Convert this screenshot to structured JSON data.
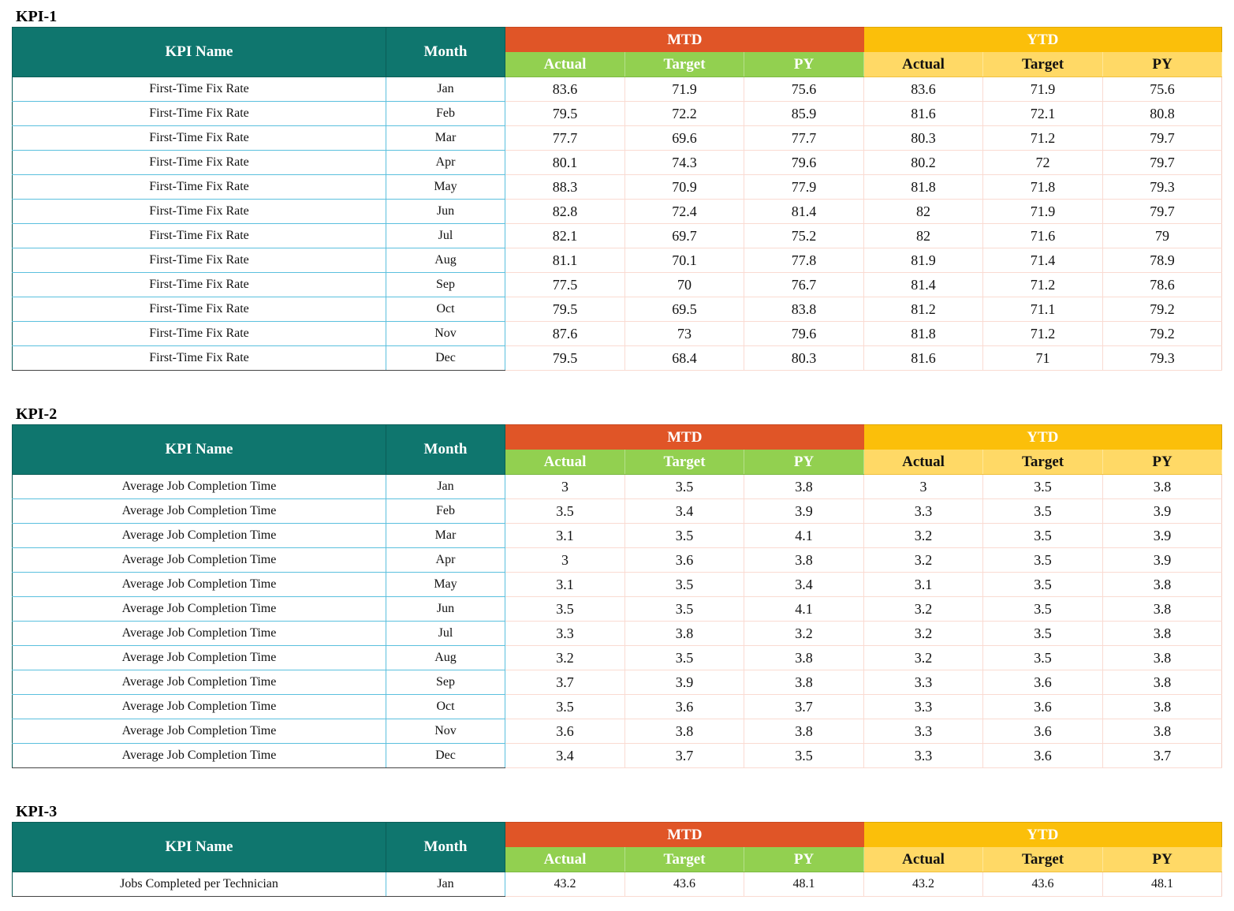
{
  "headers": {
    "kpi_name": "KPI Name",
    "month": "Month",
    "mtd": "MTD",
    "ytd": "YTD",
    "actual": "Actual",
    "target": "Target",
    "py": "PY"
  },
  "colors": {
    "name_header": "#0f766e",
    "mtd_header": "#e05527",
    "mtd_sub": "#92d050",
    "ytd_header": "#fbbf0a",
    "ytd_sub": "#ffd966"
  },
  "kpis": [
    {
      "title": "KPI-1",
      "rows": [
        {
          "name": "First-Time Fix Rate",
          "month": "Jan",
          "mtd_actual": "83.6",
          "mtd_target": "71.9",
          "mtd_py": "75.6",
          "ytd_actual": "83.6",
          "ytd_target": "71.9",
          "ytd_py": "75.6"
        },
        {
          "name": "First-Time Fix Rate",
          "month": "Feb",
          "mtd_actual": "79.5",
          "mtd_target": "72.2",
          "mtd_py": "85.9",
          "ytd_actual": "81.6",
          "ytd_target": "72.1",
          "ytd_py": "80.8"
        },
        {
          "name": "First-Time Fix Rate",
          "month": "Mar",
          "mtd_actual": "77.7",
          "mtd_target": "69.6",
          "mtd_py": "77.7",
          "ytd_actual": "80.3",
          "ytd_target": "71.2",
          "ytd_py": "79.7"
        },
        {
          "name": "First-Time Fix Rate",
          "month": "Apr",
          "mtd_actual": "80.1",
          "mtd_target": "74.3",
          "mtd_py": "79.6",
          "ytd_actual": "80.2",
          "ytd_target": "72",
          "ytd_py": "79.7"
        },
        {
          "name": "First-Time Fix Rate",
          "month": "May",
          "mtd_actual": "88.3",
          "mtd_target": "70.9",
          "mtd_py": "77.9",
          "ytd_actual": "81.8",
          "ytd_target": "71.8",
          "ytd_py": "79.3"
        },
        {
          "name": "First-Time Fix Rate",
          "month": "Jun",
          "mtd_actual": "82.8",
          "mtd_target": "72.4",
          "mtd_py": "81.4",
          "ytd_actual": "82",
          "ytd_target": "71.9",
          "ytd_py": "79.7"
        },
        {
          "name": "First-Time Fix Rate",
          "month": "Jul",
          "mtd_actual": "82.1",
          "mtd_target": "69.7",
          "mtd_py": "75.2",
          "ytd_actual": "82",
          "ytd_target": "71.6",
          "ytd_py": "79"
        },
        {
          "name": "First-Time Fix Rate",
          "month": "Aug",
          "mtd_actual": "81.1",
          "mtd_target": "70.1",
          "mtd_py": "77.8",
          "ytd_actual": "81.9",
          "ytd_target": "71.4",
          "ytd_py": "78.9"
        },
        {
          "name": "First-Time Fix Rate",
          "month": "Sep",
          "mtd_actual": "77.5",
          "mtd_target": "70",
          "mtd_py": "76.7",
          "ytd_actual": "81.4",
          "ytd_target": "71.2",
          "ytd_py": "78.6"
        },
        {
          "name": "First-Time Fix Rate",
          "month": "Oct",
          "mtd_actual": "79.5",
          "mtd_target": "69.5",
          "mtd_py": "83.8",
          "ytd_actual": "81.2",
          "ytd_target": "71.1",
          "ytd_py": "79.2"
        },
        {
          "name": "First-Time Fix Rate",
          "month": "Nov",
          "mtd_actual": "87.6",
          "mtd_target": "73",
          "mtd_py": "79.6",
          "ytd_actual": "81.8",
          "ytd_target": "71.2",
          "ytd_py": "79.2"
        },
        {
          "name": "First-Time Fix Rate",
          "month": "Dec",
          "mtd_actual": "79.5",
          "mtd_target": "68.4",
          "mtd_py": "80.3",
          "ytd_actual": "81.6",
          "ytd_target": "71",
          "ytd_py": "79.3"
        }
      ]
    },
    {
      "title": "KPI-2",
      "rows": [
        {
          "name": "Average Job Completion Time",
          "month": "Jan",
          "mtd_actual": "3",
          "mtd_target": "3.5",
          "mtd_py": "3.8",
          "ytd_actual": "3",
          "ytd_target": "3.5",
          "ytd_py": "3.8"
        },
        {
          "name": "Average Job Completion Time",
          "month": "Feb",
          "mtd_actual": "3.5",
          "mtd_target": "3.4",
          "mtd_py": "3.9",
          "ytd_actual": "3.3",
          "ytd_target": "3.5",
          "ytd_py": "3.9"
        },
        {
          "name": "Average Job Completion Time",
          "month": "Mar",
          "mtd_actual": "3.1",
          "mtd_target": "3.5",
          "mtd_py": "4.1",
          "ytd_actual": "3.2",
          "ytd_target": "3.5",
          "ytd_py": "3.9"
        },
        {
          "name": "Average Job Completion Time",
          "month": "Apr",
          "mtd_actual": "3",
          "mtd_target": "3.6",
          "mtd_py": "3.8",
          "ytd_actual": "3.2",
          "ytd_target": "3.5",
          "ytd_py": "3.9"
        },
        {
          "name": "Average Job Completion Time",
          "month": "May",
          "mtd_actual": "3.1",
          "mtd_target": "3.5",
          "mtd_py": "3.4",
          "ytd_actual": "3.1",
          "ytd_target": "3.5",
          "ytd_py": "3.8"
        },
        {
          "name": "Average Job Completion Time",
          "month": "Jun",
          "mtd_actual": "3.5",
          "mtd_target": "3.5",
          "mtd_py": "4.1",
          "ytd_actual": "3.2",
          "ytd_target": "3.5",
          "ytd_py": "3.8"
        },
        {
          "name": "Average Job Completion Time",
          "month": "Jul",
          "mtd_actual": "3.3",
          "mtd_target": "3.8",
          "mtd_py": "3.2",
          "ytd_actual": "3.2",
          "ytd_target": "3.5",
          "ytd_py": "3.8"
        },
        {
          "name": "Average Job Completion Time",
          "month": "Aug",
          "mtd_actual": "3.2",
          "mtd_target": "3.5",
          "mtd_py": "3.8",
          "ytd_actual": "3.2",
          "ytd_target": "3.5",
          "ytd_py": "3.8"
        },
        {
          "name": "Average Job Completion Time",
          "month": "Sep",
          "mtd_actual": "3.7",
          "mtd_target": "3.9",
          "mtd_py": "3.8",
          "ytd_actual": "3.3",
          "ytd_target": "3.6",
          "ytd_py": "3.8"
        },
        {
          "name": "Average Job Completion Time",
          "month": "Oct",
          "mtd_actual": "3.5",
          "mtd_target": "3.6",
          "mtd_py": "3.7",
          "ytd_actual": "3.3",
          "ytd_target": "3.6",
          "ytd_py": "3.8"
        },
        {
          "name": "Average Job Completion Time",
          "month": "Nov",
          "mtd_actual": "3.6",
          "mtd_target": "3.8",
          "mtd_py": "3.8",
          "ytd_actual": "3.3",
          "ytd_target": "3.6",
          "ytd_py": "3.8"
        },
        {
          "name": "Average Job Completion Time",
          "month": "Dec",
          "mtd_actual": "3.4",
          "mtd_target": "3.7",
          "mtd_py": "3.5",
          "ytd_actual": "3.3",
          "ytd_target": "3.6",
          "ytd_py": "3.7"
        }
      ]
    },
    {
      "title": "KPI-3",
      "rows": [
        {
          "name": "Jobs Completed per Technician",
          "month": "Jan",
          "mtd_actual": "43.2",
          "mtd_target": "43.6",
          "mtd_py": "48.1",
          "ytd_actual": "43.2",
          "ytd_target": "43.6",
          "ytd_py": "48.1"
        }
      ]
    }
  ]
}
